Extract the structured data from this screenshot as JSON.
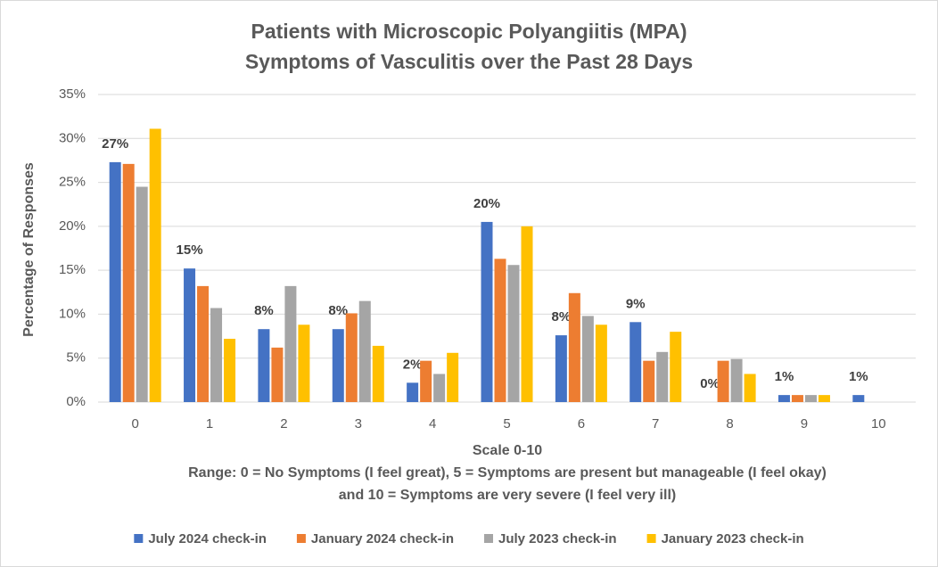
{
  "chart_data": {
    "type": "bar",
    "title": "Patients with Microscopic Polyangiitis (MPA)",
    "subtitle": "Symptoms of Vasculitis over the Past 28 Days",
    "x_label": "Scale 0-10",
    "y_label": "Percentage of Responses",
    "annotation_lines": [
      "Range: 0 = No Symptoms (I feel great), 5 = Symptoms are present but manageable (I feel okay)",
      "and 10 = Symptoms are very severe (I feel very ill)"
    ],
    "categories": [
      "0",
      "1",
      "2",
      "3",
      "4",
      "5",
      "6",
      "7",
      "8",
      "9",
      "10"
    ],
    "series": [
      {
        "name": "July 2024 check-in",
        "color": "#4472c4",
        "values": [
          27.3,
          15.2,
          8.3,
          8.3,
          2.2,
          20.5,
          7.6,
          9.1,
          0,
          0.8,
          0.8
        ],
        "value_labels": [
          "27%",
          "15%",
          "8%",
          "8%",
          "2%",
          "20%",
          "8%",
          "9%",
          "0%",
          "1%",
          "1%"
        ]
      },
      {
        "name": "January 2024 check-in",
        "color": "#ed7d31",
        "values": [
          27.1,
          13.2,
          6.2,
          10.1,
          4.7,
          16.3,
          12.4,
          4.7,
          4.7,
          0.8,
          0
        ]
      },
      {
        "name": "July 2023 check-in",
        "color": "#a5a5a5",
        "values": [
          24.5,
          10.7,
          13.2,
          11.5,
          3.2,
          15.6,
          9.8,
          5.7,
          4.9,
          0.8,
          0
        ]
      },
      {
        "name": "January 2023 check-in",
        "color": "#ffc000",
        "values": [
          31.1,
          7.2,
          8.8,
          6.4,
          5.6,
          20.0,
          8.8,
          8.0,
          3.2,
          0.8,
          0
        ]
      }
    ],
    "ylim": [
      0,
      35
    ],
    "yticks": [
      {
        "value": 0,
        "label": "0%"
      },
      {
        "value": 5,
        "label": "5%"
      },
      {
        "value": 10,
        "label": "10%"
      },
      {
        "value": 15,
        "label": "15%"
      },
      {
        "value": 20,
        "label": "20%"
      },
      {
        "value": 25,
        "label": "25%"
      },
      {
        "value": 30,
        "label": "30%"
      },
      {
        "value": 35,
        "label": "35%"
      }
    ],
    "grid": true,
    "legend": "bottom"
  }
}
